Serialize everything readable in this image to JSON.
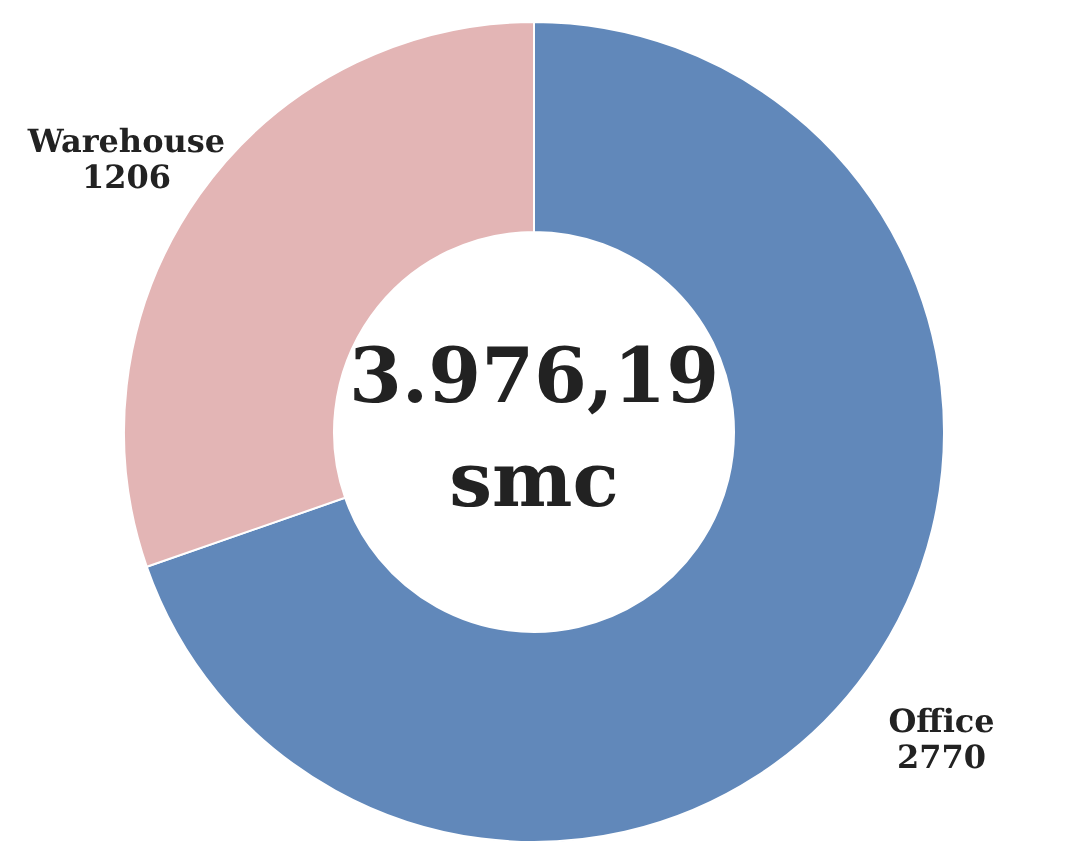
{
  "chart_data": {
    "type": "donut",
    "categories": [
      "Office",
      "Warehouse"
    ],
    "values": [
      2770,
      1206
    ],
    "colors": [
      "#6188ba",
      "#e3b5b5"
    ],
    "data_labels": true,
    "legend": false,
    "annotations": [
      "3.976,19",
      "smc"
    ]
  }
}
